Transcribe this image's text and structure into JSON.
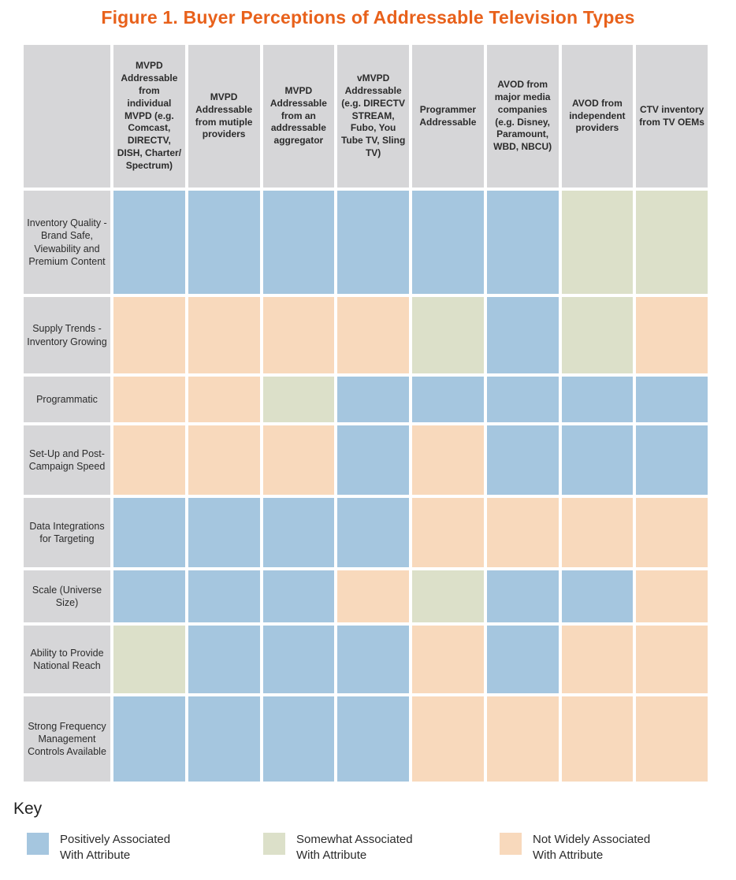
{
  "figure": {
    "title": "Figure 1. Buyer Perceptions of Addressable Television Types"
  },
  "key": {
    "heading": "Key",
    "items": [
      {
        "id": "positive",
        "label": "Positively Associated With Attribute",
        "color": "#a5c6df"
      },
      {
        "id": "somewhat",
        "label": "Somewhat Associated With Attribute",
        "color": "#dce0c9"
      },
      {
        "id": "not",
        "label": "Not Widely Associated With Attribute",
        "color": "#f8d9bc"
      }
    ]
  },
  "chart_data": {
    "type": "heatmap",
    "title": "Figure 1. Buyer Perceptions of Addressable Television Types",
    "legend_position": "bottom",
    "columns": [
      "MVPD Addressable from individual MVPD (e.g. Comcast, DIRECTV, DISH, Charter/ Spectrum)",
      "MVPD Addressable from mutiple providers",
      "MVPD Addressable from an addressable aggregator",
      "vMVPD Addressable (e.g. DIRECTV STREAM, Fubo, You Tube TV, Sling TV)",
      "Programmer Addressable",
      "AVOD from major media companies (e.g. Disney, Paramount, WBD, NBCU)",
      "AVOD from independent providers",
      "CTV inventory from TV OEMs"
    ],
    "rows": [
      "Inventory Quality - Brand Safe, Viewability and Premium Content",
      "Supply Trends - Inventory Growing",
      "Programmatic",
      "Set-Up and Post-Campaign Speed",
      "Data Integrations for Targeting",
      "Scale (Universe Size)",
      "Ability to Provide National Reach",
      "Strong Frequency Management Controls Available"
    ],
    "values": [
      [
        "positive",
        "positive",
        "positive",
        "positive",
        "positive",
        "positive",
        "somewhat",
        "somewhat"
      ],
      [
        "not",
        "not",
        "not",
        "not",
        "somewhat",
        "positive",
        "somewhat",
        "not"
      ],
      [
        "not",
        "not",
        "somewhat",
        "positive",
        "positive",
        "positive",
        "positive",
        "positive"
      ],
      [
        "not",
        "not",
        "not",
        "positive",
        "not",
        "positive",
        "positive",
        "positive"
      ],
      [
        "positive",
        "positive",
        "positive",
        "positive",
        "not",
        "not",
        "not",
        "not"
      ],
      [
        "positive",
        "positive",
        "positive",
        "not",
        "somewhat",
        "positive",
        "positive",
        "not"
      ],
      [
        "somewhat",
        "positive",
        "positive",
        "positive",
        "not",
        "positive",
        "not",
        "not"
      ],
      [
        "positive",
        "positive",
        "positive",
        "positive",
        "not",
        "not",
        "not",
        "not"
      ]
    ],
    "value_labels": {
      "positive": "Positively Associated With Attribute",
      "somewhat": "Somewhat Associated With Attribute",
      "not": "Not Widely Associated With Attribute"
    },
    "colors": {
      "positive": "#a5c6df",
      "somewhat": "#dce0c9",
      "not": "#f8d9bc",
      "header_bg": "#d6d6d8",
      "title": "#e8611b",
      "text": "#2b2b2b"
    }
  }
}
